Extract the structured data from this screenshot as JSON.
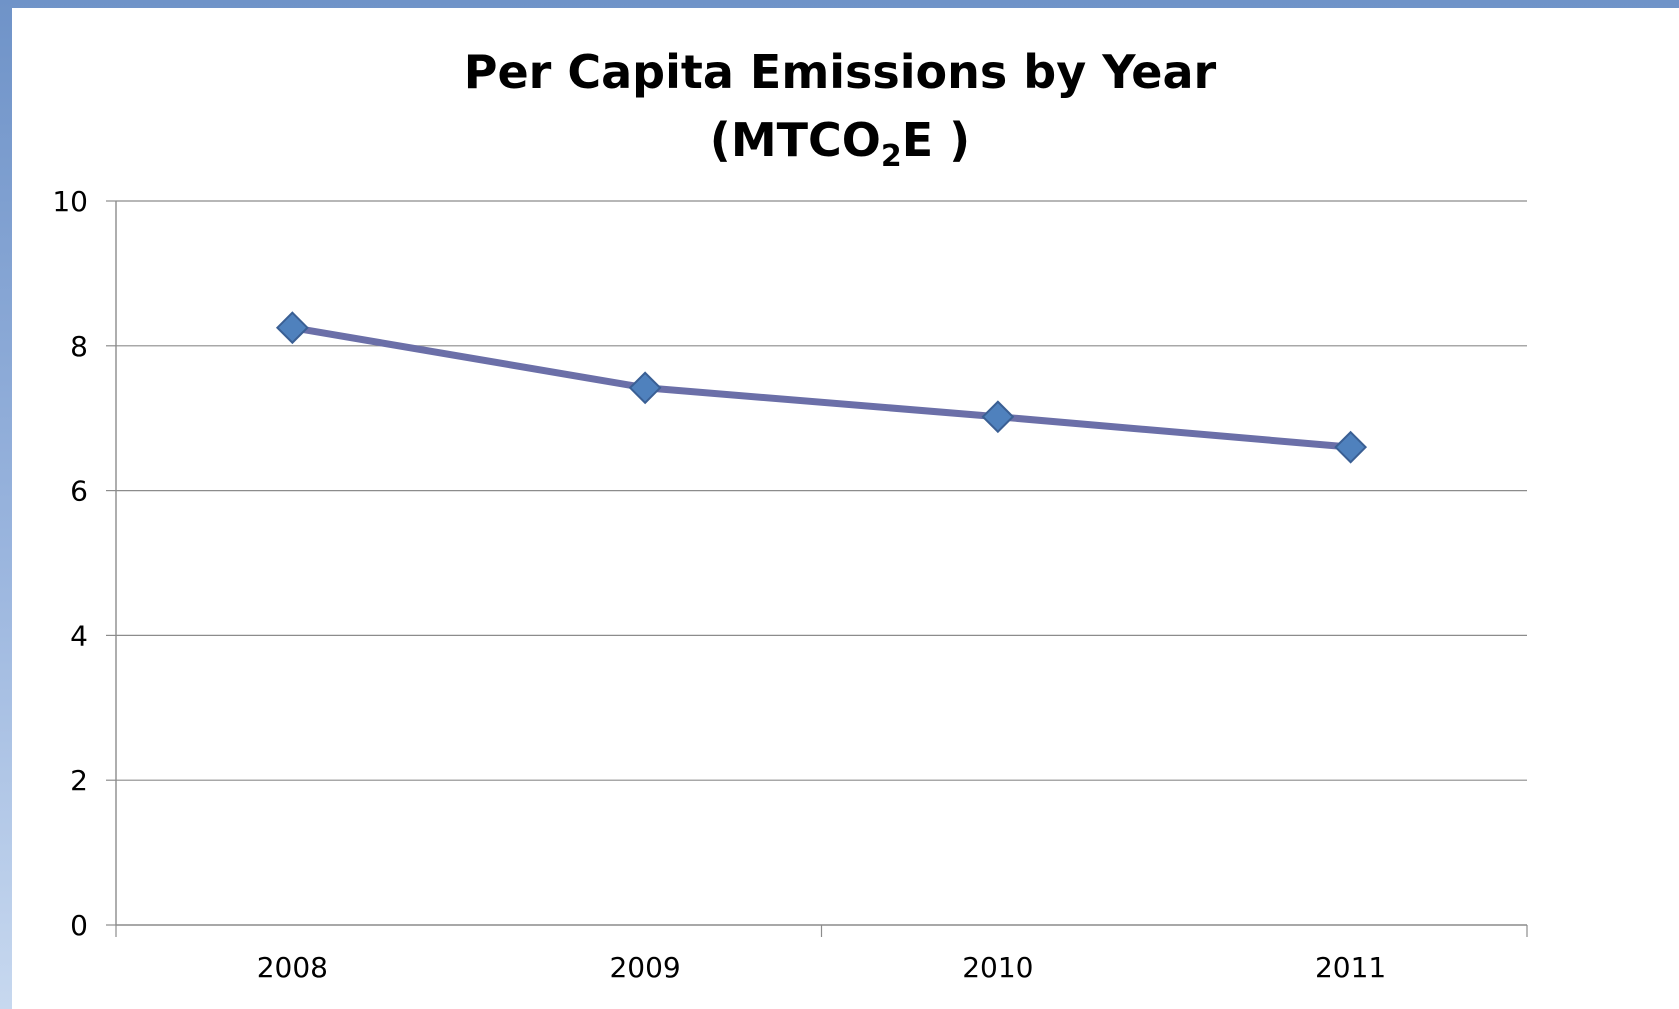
{
  "chart_data": {
    "type": "line",
    "title": "Per Capita Emissions by Year",
    "subtitle": {
      "prefix": "(MTCO",
      "sub": "2",
      "suffix": "E )"
    },
    "xlabel": "",
    "ylabel": "",
    "categories": [
      "2008",
      "2009",
      "2010",
      "2011"
    ],
    "series": [
      {
        "values": [
          8.25,
          7.42,
          7.02,
          6.6
        ]
      }
    ],
    "ylim": [
      0,
      10
    ],
    "yticks": [
      "0",
      "2",
      "4",
      "6",
      "8",
      "10"
    ],
    "grid": true,
    "legend": "none",
    "colors": {
      "line": "#6b6fa8",
      "marker": "#4f81bd",
      "marker_edge": "#3a5f94",
      "grid": "#8c8c8c",
      "axis": "#8c8c8c"
    }
  }
}
